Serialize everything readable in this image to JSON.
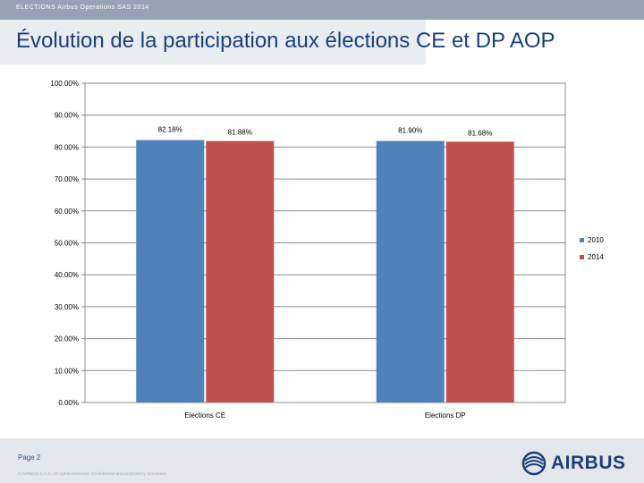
{
  "header": {
    "topbar_text": "ELECTIONS Airbus Operations SAS 2014",
    "title": "Évolution de la participation aux élections CE et DP AOP"
  },
  "footer": {
    "page_label": "Page 2",
    "copyright": "© AIRBUS S.A.S. All rights reserved. Confidential and proprietary document.",
    "logo_text": "AIRBUS"
  },
  "colors": {
    "series_2010": "#4f81bd",
    "series_2014": "#c0504d",
    "title": "#1b3f7d"
  },
  "chart_data": {
    "type": "bar",
    "title": "",
    "xlabel": "",
    "ylabel": "",
    "ylim": [
      0,
      100
    ],
    "categories": [
      "Elections CE",
      "Elections DP"
    ],
    "yticks": [
      {
        "value": 0,
        "label": "0.00%"
      },
      {
        "value": 10,
        "label": "10.00%"
      },
      {
        "value": 20,
        "label": "20.00%"
      },
      {
        "value": 30,
        "label": "30.00%"
      },
      {
        "value": 40,
        "label": "40.00%"
      },
      {
        "value": 50,
        "label": "50.00%"
      },
      {
        "value": 60,
        "label": "60.00%"
      },
      {
        "value": 70,
        "label": "70.00%"
      },
      {
        "value": 80,
        "label": "80.00%"
      },
      {
        "value": 90,
        "label": "90.00%"
      },
      {
        "value": 100,
        "label": "100.00%"
      }
    ],
    "series": [
      {
        "name": "2010",
        "color": "#4f81bd",
        "values": [
          82.18,
          81.9
        ],
        "labels": [
          "82.18%",
          "81.90%"
        ]
      },
      {
        "name": "2014",
        "color": "#c0504d",
        "values": [
          81.88,
          81.68
        ],
        "labels": [
          "81.88%",
          "81.68%"
        ]
      }
    ],
    "grid": true,
    "legend": "right"
  }
}
